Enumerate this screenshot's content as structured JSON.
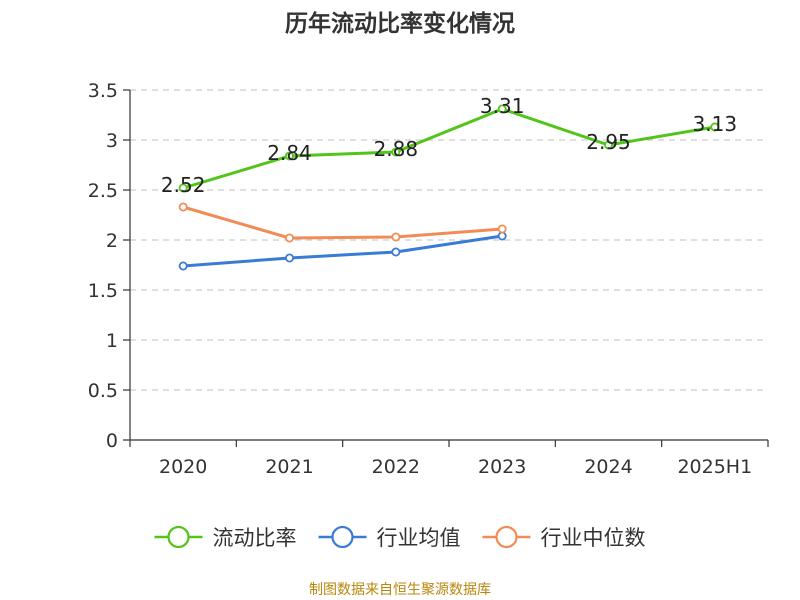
{
  "title": "历年流动比率变化情况",
  "footer": "制图数据来自恒生聚源数据库",
  "chart_data": {
    "type": "line",
    "title": "历年流动比率变化情况",
    "categories": [
      "2020",
      "2021",
      "2022",
      "2023",
      "2024",
      "2025H1"
    ],
    "ylim": [
      0,
      3.5
    ],
    "yticks": [
      "0",
      "0.5",
      "1",
      "1.5",
      "2",
      "2.5",
      "3",
      "3.5"
    ],
    "grid": true,
    "legend_position": "bottom",
    "series": [
      {
        "name": "流动比率",
        "color": "#52c41a",
        "values": [
          2.52,
          2.84,
          2.88,
          3.31,
          2.95,
          3.13
        ],
        "labels": [
          "2.52",
          "2.84",
          "2.88",
          "3.31",
          "2.95",
          "3.13"
        ]
      },
      {
        "name": "行业均值",
        "color": "#3a7bd5",
        "values": [
          1.74,
          1.82,
          1.88,
          2.04,
          null,
          null
        ]
      },
      {
        "name": "行业中位数",
        "color": "#f28c57",
        "values": [
          2.33,
          2.02,
          2.03,
          2.11,
          null,
          null
        ]
      }
    ]
  }
}
